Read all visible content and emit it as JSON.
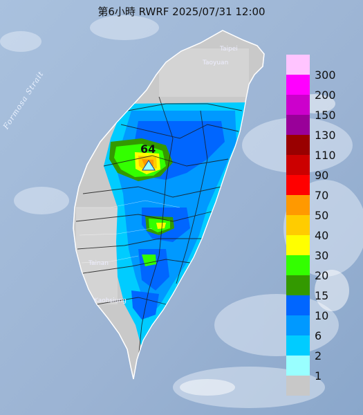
{
  "title": "第6小時  RWRF 2025/07/31 12:00",
  "legend": {
    "items": [
      {
        "label": "300",
        "color": "#ffc4ff"
      },
      {
        "label": "200",
        "color": "#ff00ff"
      },
      {
        "label": "150",
        "color": "#cc00cc"
      },
      {
        "label": "130",
        "color": "#990099"
      },
      {
        "label": "110",
        "color": "#990000"
      },
      {
        "label": "90",
        "color": "#cc0000"
      },
      {
        "label": "70",
        "color": "#ff0000"
      },
      {
        "label": "50",
        "color": "#ff9900"
      },
      {
        "label": "40",
        "color": "#ffcc00"
      },
      {
        "label": "30",
        "color": "#ffff00"
      },
      {
        "label": "20",
        "color": "#33ff00"
      },
      {
        "label": "15",
        "color": "#339900"
      },
      {
        "label": "10",
        "color": "#0066ff"
      },
      {
        "label": "6",
        "color": "#0099ff"
      },
      {
        "label": "2",
        "color": "#00ccff"
      },
      {
        "label": "1",
        "color": "#99ffff"
      },
      {
        "label": "",
        "color": "#c8c8c8"
      }
    ]
  },
  "max_marker": {
    "value": "64"
  },
  "places": {
    "taipei": "Taipei",
    "taoyuan": "Taoyuan",
    "tainan": "Tainan",
    "kaohsiung": "Kaohsiung"
  },
  "strait_label": "Formosa Strait"
}
